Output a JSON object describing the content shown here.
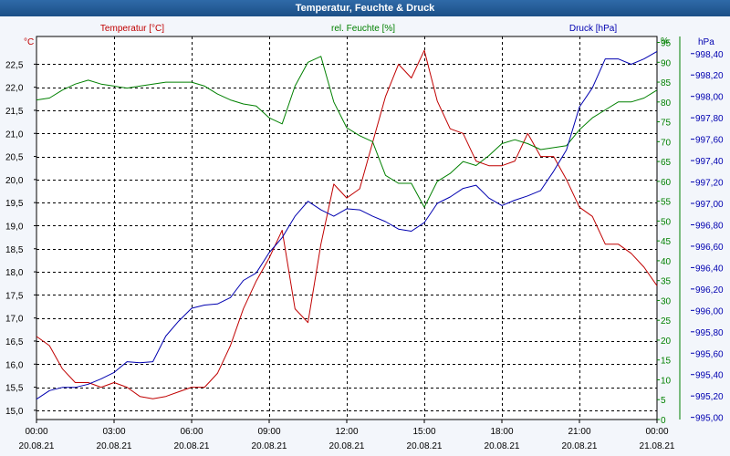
{
  "window": {
    "title": "Temperatur, Feuchte & Druck"
  },
  "colors": {
    "temperature": "#c00000",
    "humidity": "#008000",
    "pressure": "#0000b0",
    "grid": "#000000",
    "plot_bg": "#ffffff",
    "page_bg": "#f3f6fb",
    "tick_text": "#000000"
  },
  "legend": {
    "temperature": "Temperatur [°C]",
    "humidity": "rel. Feuchte [%]",
    "pressure": "Druck [hPa]"
  },
  "chart_data": {
    "type": "line",
    "title": "Temperatur, Feuchte & Druck",
    "x": [
      "00:00",
      "00:30",
      "01:00",
      "01:30",
      "02:00",
      "02:30",
      "03:00",
      "03:30",
      "04:00",
      "04:30",
      "05:00",
      "05:30",
      "06:00",
      "06:30",
      "07:00",
      "07:30",
      "08:00",
      "08:30",
      "09:00",
      "09:30",
      "10:00",
      "10:30",
      "11:00",
      "11:30",
      "12:00",
      "12:30",
      "13:00",
      "13:30",
      "14:00",
      "14:30",
      "15:00",
      "15:30",
      "16:00",
      "16:30",
      "17:00",
      "17:30",
      "18:00",
      "18:30",
      "19:00",
      "19:30",
      "20:00",
      "20:30",
      "21:00",
      "21:30",
      "22:00",
      "22:30",
      "23:00",
      "23:30",
      "24:00"
    ],
    "xlim_hours": [
      0,
      24
    ],
    "x_ticks": [
      {
        "time": "00:00",
        "date": "20.08.21"
      },
      {
        "time": "03:00",
        "date": "20.08.21"
      },
      {
        "time": "06:00",
        "date": "20.08.21"
      },
      {
        "time": "09:00",
        "date": "20.08.21"
      },
      {
        "time": "12:00",
        "date": "20.08.21"
      },
      {
        "time": "15:00",
        "date": "20.08.21"
      },
      {
        "time": "18:00",
        "date": "20.08.21"
      },
      {
        "time": "21:00",
        "date": "20.08.21"
      },
      {
        "time": "00:00",
        "date": "21.08.21"
      }
    ],
    "axes": {
      "left": {
        "unit": "°C",
        "min": 14.8,
        "max": 23.1,
        "ticks": [
          "15,0",
          "15,5",
          "16,0",
          "16,5",
          "17,0",
          "17,5",
          "18,0",
          "18,5",
          "19,0",
          "19,5",
          "20,0",
          "20,5",
          "21,0",
          "21,5",
          "22,0",
          "22,5"
        ]
      },
      "middle": {
        "unit": "%",
        "min": 0,
        "max": 96.5,
        "ticks": [
          "0",
          "5",
          "10",
          "15",
          "20",
          "25",
          "30",
          "35",
          "40",
          "45",
          "50",
          "55",
          "60",
          "65",
          "70",
          "75",
          "80",
          "85",
          "90",
          "95"
        ]
      },
      "right": {
        "unit": "hPa",
        "min": 994.98,
        "max": 998.56,
        "ticks": [
          "995,00",
          "995,20",
          "995,40",
          "995,60",
          "995,80",
          "996,00",
          "996,20",
          "996,40",
          "996,60",
          "996,80",
          "997,00",
          "997,20",
          "997,40",
          "997,60",
          "997,80",
          "998,00",
          "998,20",
          "998,40"
        ]
      }
    },
    "grid": true,
    "series": [
      {
        "name": "Temperatur [°C]",
        "axis": "left",
        "values": [
          16.6,
          16.4,
          15.9,
          15.6,
          15.6,
          15.5,
          15.6,
          15.5,
          15.3,
          15.25,
          15.3,
          15.4,
          15.5,
          15.5,
          15.8,
          16.4,
          17.2,
          17.8,
          18.3,
          18.9,
          17.2,
          16.9,
          18.6,
          19.9,
          19.6,
          19.8,
          20.8,
          21.8,
          22.5,
          22.2,
          22.8,
          21.7,
          21.1,
          21.0,
          20.4,
          20.3,
          20.3,
          20.4,
          21.0,
          20.5,
          20.5,
          20.0,
          19.4,
          19.2,
          18.6,
          18.6,
          18.4,
          18.1,
          17.7
        ]
      },
      {
        "name": "rel. Feuchte [%]",
        "axis": "middle",
        "values": [
          80.5,
          81,
          83,
          84.5,
          85.5,
          84.5,
          84,
          83.5,
          84,
          84.5,
          85,
          85,
          85,
          84,
          82,
          80.5,
          79.5,
          79,
          76,
          74.5,
          84,
          90,
          91.5,
          80,
          73.5,
          71.5,
          70,
          61.5,
          59.5,
          59.5,
          53.5,
          60,
          62,
          65,
          64,
          66.5,
          69.5,
          70.5,
          69.5,
          68,
          68.5,
          69,
          73,
          76,
          78,
          80,
          80,
          81,
          83
        ]
      },
      {
        "name": "Druck [hPa]",
        "axis": "right",
        "values": [
          995.17,
          995.25,
          995.28,
          995.28,
          995.31,
          995.36,
          995.42,
          995.52,
          995.51,
          995.52,
          995.76,
          995.9,
          996.02,
          996.05,
          996.06,
          996.12,
          996.28,
          996.35,
          996.54,
          996.68,
          996.88,
          997.02,
          996.94,
          996.88,
          996.95,
          996.94,
          996.88,
          996.83,
          996.76,
          996.74,
          996.82,
          997.0,
          997.06,
          997.14,
          997.17,
          997.05,
          996.98,
          997.03,
          997.07,
          997.12,
          997.3,
          997.5,
          997.9,
          998.08,
          998.35,
          998.35,
          998.3,
          998.35,
          998.42
        ]
      }
    ]
  }
}
